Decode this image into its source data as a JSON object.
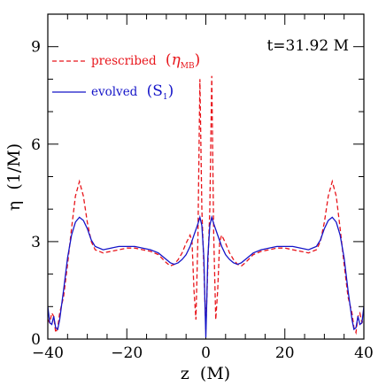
{
  "chart_data": {
    "type": "line",
    "time_label": "t=31.92 M",
    "xlabel": "z  (M)",
    "ylabel": "η  (1/M)",
    "xlim": [
      -40,
      40
    ],
    "ylim": [
      0,
      10
    ],
    "xticks": [
      -40,
      -20,
      0,
      20,
      40
    ],
    "yticks": [
      0,
      3,
      6,
      9
    ],
    "x_tick_labels": [
      "−40",
      "−20",
      "0",
      "20",
      "40"
    ],
    "y_tick_labels": [
      "0",
      "3",
      "6",
      "9"
    ],
    "legend_position": "top-left",
    "series": [
      {
        "name": "prescribed",
        "legend_label": "prescribed",
        "legend_symbol": "η",
        "legend_subscript": "MB",
        "color": "#e8151b",
        "dash": "dashed",
        "points": [
          [
            -40,
            0.6
          ],
          [
            -39.5,
            0.5
          ],
          [
            -39,
            0.8
          ],
          [
            -38.5,
            0.7
          ],
          [
            -38,
            0.2
          ],
          [
            -37.5,
            0.35
          ],
          [
            -37,
            0.8
          ],
          [
            -36,
            1.3
          ],
          [
            -35,
            2.3
          ],
          [
            -34,
            3.4
          ],
          [
            -33,
            4.4
          ],
          [
            -32,
            4.85
          ],
          [
            -31,
            4.4
          ],
          [
            -30,
            3.6
          ],
          [
            -29,
            3.0
          ],
          [
            -28,
            2.75
          ],
          [
            -26,
            2.65
          ],
          [
            -24,
            2.7
          ],
          [
            -22,
            2.75
          ],
          [
            -20,
            2.8
          ],
          [
            -18,
            2.8
          ],
          [
            -16,
            2.75
          ],
          [
            -14,
            2.7
          ],
          [
            -12,
            2.6
          ],
          [
            -10,
            2.35
          ],
          [
            -9,
            2.25
          ],
          [
            -8,
            2.3
          ],
          [
            -7,
            2.45
          ],
          [
            -6,
            2.65
          ],
          [
            -5,
            2.95
          ],
          [
            -4,
            3.2
          ],
          [
            -3.5,
            3.0
          ],
          [
            -3,
            1.5
          ],
          [
            -2.5,
            0.6
          ],
          [
            -2,
            3.2
          ],
          [
            -1.5,
            8.0
          ],
          [
            -1,
            4.0
          ],
          [
            -0.5,
            2.2
          ],
          [
            0,
            0.3
          ],
          [
            0.5,
            2.2
          ],
          [
            1,
            4.0
          ],
          [
            1.5,
            8.1
          ],
          [
            2,
            3.2
          ],
          [
            2.5,
            0.6
          ],
          [
            3,
            1.5
          ],
          [
            3.5,
            3.0
          ],
          [
            4,
            3.2
          ],
          [
            5,
            2.95
          ],
          [
            6,
            2.65
          ],
          [
            7,
            2.45
          ],
          [
            8,
            2.3
          ],
          [
            9,
            2.25
          ],
          [
            10,
            2.35
          ],
          [
            12,
            2.6
          ],
          [
            14,
            2.7
          ],
          [
            16,
            2.75
          ],
          [
            18,
            2.8
          ],
          [
            20,
            2.8
          ],
          [
            22,
            2.75
          ],
          [
            24,
            2.7
          ],
          [
            26,
            2.65
          ],
          [
            28,
            2.75
          ],
          [
            29,
            3.0
          ],
          [
            30,
            3.6
          ],
          [
            31,
            4.4
          ],
          [
            32,
            4.85
          ],
          [
            33,
            4.4
          ],
          [
            34,
            3.4
          ],
          [
            35,
            2.3
          ],
          [
            36,
            1.3
          ],
          [
            37,
            0.8
          ],
          [
            37.5,
            0.35
          ],
          [
            38,
            0.2
          ],
          [
            38.5,
            0.7
          ],
          [
            39,
            0.8
          ],
          [
            39.5,
            0.5
          ],
          [
            40,
            0.6
          ]
        ]
      },
      {
        "name": "evolved",
        "legend_label": "evolved",
        "legend_symbol": "S",
        "legend_subscript": "1",
        "color": "#1414c8",
        "dash": "solid",
        "points": [
          [
            -40,
            1.0
          ],
          [
            -39.5,
            0.5
          ],
          [
            -39,
            0.45
          ],
          [
            -38.5,
            0.7
          ],
          [
            -38,
            0.35
          ],
          [
            -37.5,
            0.3
          ],
          [
            -37,
            0.6
          ],
          [
            -36,
            1.5
          ],
          [
            -35,
            2.5
          ],
          [
            -34,
            3.2
          ],
          [
            -33,
            3.6
          ],
          [
            -32,
            3.75
          ],
          [
            -31,
            3.65
          ],
          [
            -30,
            3.4
          ],
          [
            -29,
            3.05
          ],
          [
            -28,
            2.85
          ],
          [
            -26,
            2.75
          ],
          [
            -24,
            2.8
          ],
          [
            -22,
            2.85
          ],
          [
            -20,
            2.85
          ],
          [
            -18,
            2.85
          ],
          [
            -16,
            2.8
          ],
          [
            -14,
            2.75
          ],
          [
            -12,
            2.65
          ],
          [
            -10,
            2.45
          ],
          [
            -9,
            2.35
          ],
          [
            -8,
            2.3
          ],
          [
            -7,
            2.35
          ],
          [
            -6,
            2.45
          ],
          [
            -5,
            2.6
          ],
          [
            -4,
            2.85
          ],
          [
            -3,
            3.2
          ],
          [
            -2,
            3.55
          ],
          [
            -1.5,
            3.75
          ],
          [
            -1,
            3.5
          ],
          [
            -0.5,
            2.5
          ],
          [
            -0.2,
            1.0
          ],
          [
            0,
            0.05
          ],
          [
            0.2,
            1.0
          ],
          [
            0.5,
            2.5
          ],
          [
            1,
            3.5
          ],
          [
            1.5,
            3.75
          ],
          [
            2,
            3.55
          ],
          [
            3,
            3.2
          ],
          [
            4,
            2.85
          ],
          [
            5,
            2.6
          ],
          [
            6,
            2.45
          ],
          [
            7,
            2.35
          ],
          [
            8,
            2.3
          ],
          [
            9,
            2.35
          ],
          [
            10,
            2.45
          ],
          [
            12,
            2.65
          ],
          [
            14,
            2.75
          ],
          [
            16,
            2.8
          ],
          [
            18,
            2.85
          ],
          [
            20,
            2.85
          ],
          [
            22,
            2.85
          ],
          [
            24,
            2.8
          ],
          [
            26,
            2.75
          ],
          [
            28,
            2.85
          ],
          [
            29,
            3.05
          ],
          [
            30,
            3.4
          ],
          [
            31,
            3.65
          ],
          [
            32,
            3.75
          ],
          [
            33,
            3.6
          ],
          [
            34,
            3.2
          ],
          [
            35,
            2.5
          ],
          [
            36,
            1.5
          ],
          [
            37,
            0.6
          ],
          [
            37.5,
            0.3
          ],
          [
            38,
            0.35
          ],
          [
            38.5,
            0.7
          ],
          [
            39,
            0.45
          ],
          [
            39.5,
            0.5
          ],
          [
            40,
            1.0
          ]
        ]
      }
    ]
  }
}
